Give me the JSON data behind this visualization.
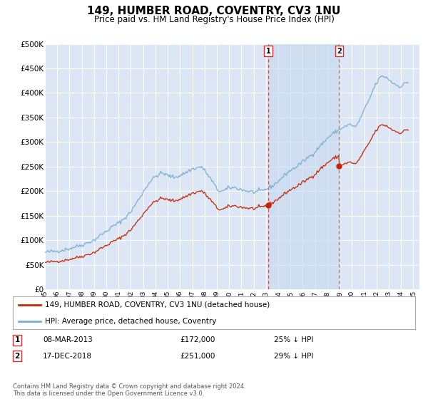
{
  "title": "149, HUMBER ROAD, COVENTRY, CV3 1NU",
  "subtitle": "Price paid vs. HM Land Registry's House Price Index (HPI)",
  "background_color": "#ffffff",
  "plot_bg_color": "#dce6f5",
  "grid_color": "#ffffff",
  "ylim": [
    0,
    500000
  ],
  "yticks": [
    0,
    50000,
    100000,
    150000,
    200000,
    250000,
    300000,
    350000,
    400000,
    450000,
    500000
  ],
  "xlim_start": 1995.0,
  "xlim_end": 2025.5,
  "annotation1": {
    "label": "1",
    "date": 2013.18,
    "value": 172000,
    "text": "08-MAR-2013",
    "price": "£172,000",
    "hpi": "25% ↓ HPI"
  },
  "annotation2": {
    "label": "2",
    "date": 2018.96,
    "value": 251000,
    "text": "17-DEC-2018",
    "price": "£251,000",
    "hpi": "29% ↓ HPI"
  },
  "legend_label1": "149, HUMBER ROAD, COVENTRY, CV3 1NU (detached house)",
  "legend_label2": "HPI: Average price, detached house, Coventry",
  "footer": "Contains HM Land Registry data © Crown copyright and database right 2024.\nThis data is licensed under the Open Government Licence v3.0.",
  "line1_color": "#cc2200",
  "line2_color": "#7ab0d4",
  "vline_color": "#dd4444",
  "shade_x1": 2013.18,
  "shade_x2": 2018.96,
  "sale1_x": 2013.18,
  "sale1_y": 172000,
  "sale2_x": 2018.96,
  "sale2_y": 251000
}
